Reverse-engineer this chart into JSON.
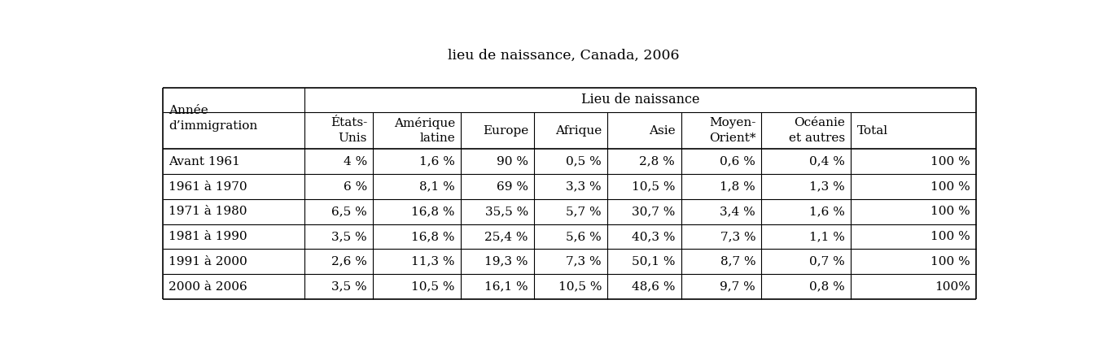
{
  "title": "lieu de naissance, Canada, 2006",
  "header_group": "Lieu de naissance",
  "col_headers": [
    "États-\nUnis",
    "Amérique\nlatine",
    "Europe",
    "Afrique",
    "Asie",
    "Moyen-\nOrient*",
    "Océanie\net autres",
    "Total"
  ],
  "row_label_header": [
    "Année",
    "d’immigration"
  ],
  "rows": [
    [
      "Avant 1961",
      "4 %",
      "1,6 %",
      "90 %",
      "0,5 %",
      "2,8 %",
      "0,6 %",
      "0,4 %",
      "100 %"
    ],
    [
      "1961 à 1970",
      "6 %",
      "8,1 %",
      "69 %",
      "3,3 %",
      "10,5 %",
      "1,8 %",
      "1,3 %",
      "100 %"
    ],
    [
      "1971 à 1980",
      "6,5 %",
      "16,8 %",
      "35,5 %",
      "5,7 %",
      "30,7 %",
      "3,4 %",
      "1,6 %",
      "100 %"
    ],
    [
      "1981 à 1990",
      "3,5 %",
      "16,8 %",
      "25,4 %",
      "5,6 %",
      "40,3 %",
      "7,3 %",
      "1,1 %",
      "100 %"
    ],
    [
      "1991 à 2000",
      "2,6 %",
      "11,3 %",
      "19,3 %",
      "7,3 %",
      "50,1 %",
      "8,7 %",
      "0,7 %",
      "100 %"
    ],
    [
      "2000 à 2006",
      "3,5 %",
      "10,5 %",
      "16,1 %",
      "10,5 %",
      "48,6 %",
      "9,7 %",
      "0,8 %",
      "100%"
    ]
  ],
  "col_alignments": [
    "left",
    "right",
    "right",
    "right",
    "right",
    "right",
    "right",
    "right",
    "right"
  ],
  "bg_color": "#ffffff",
  "text_color": "#000000",
  "font_size": 11,
  "title_font_size": 12.5
}
